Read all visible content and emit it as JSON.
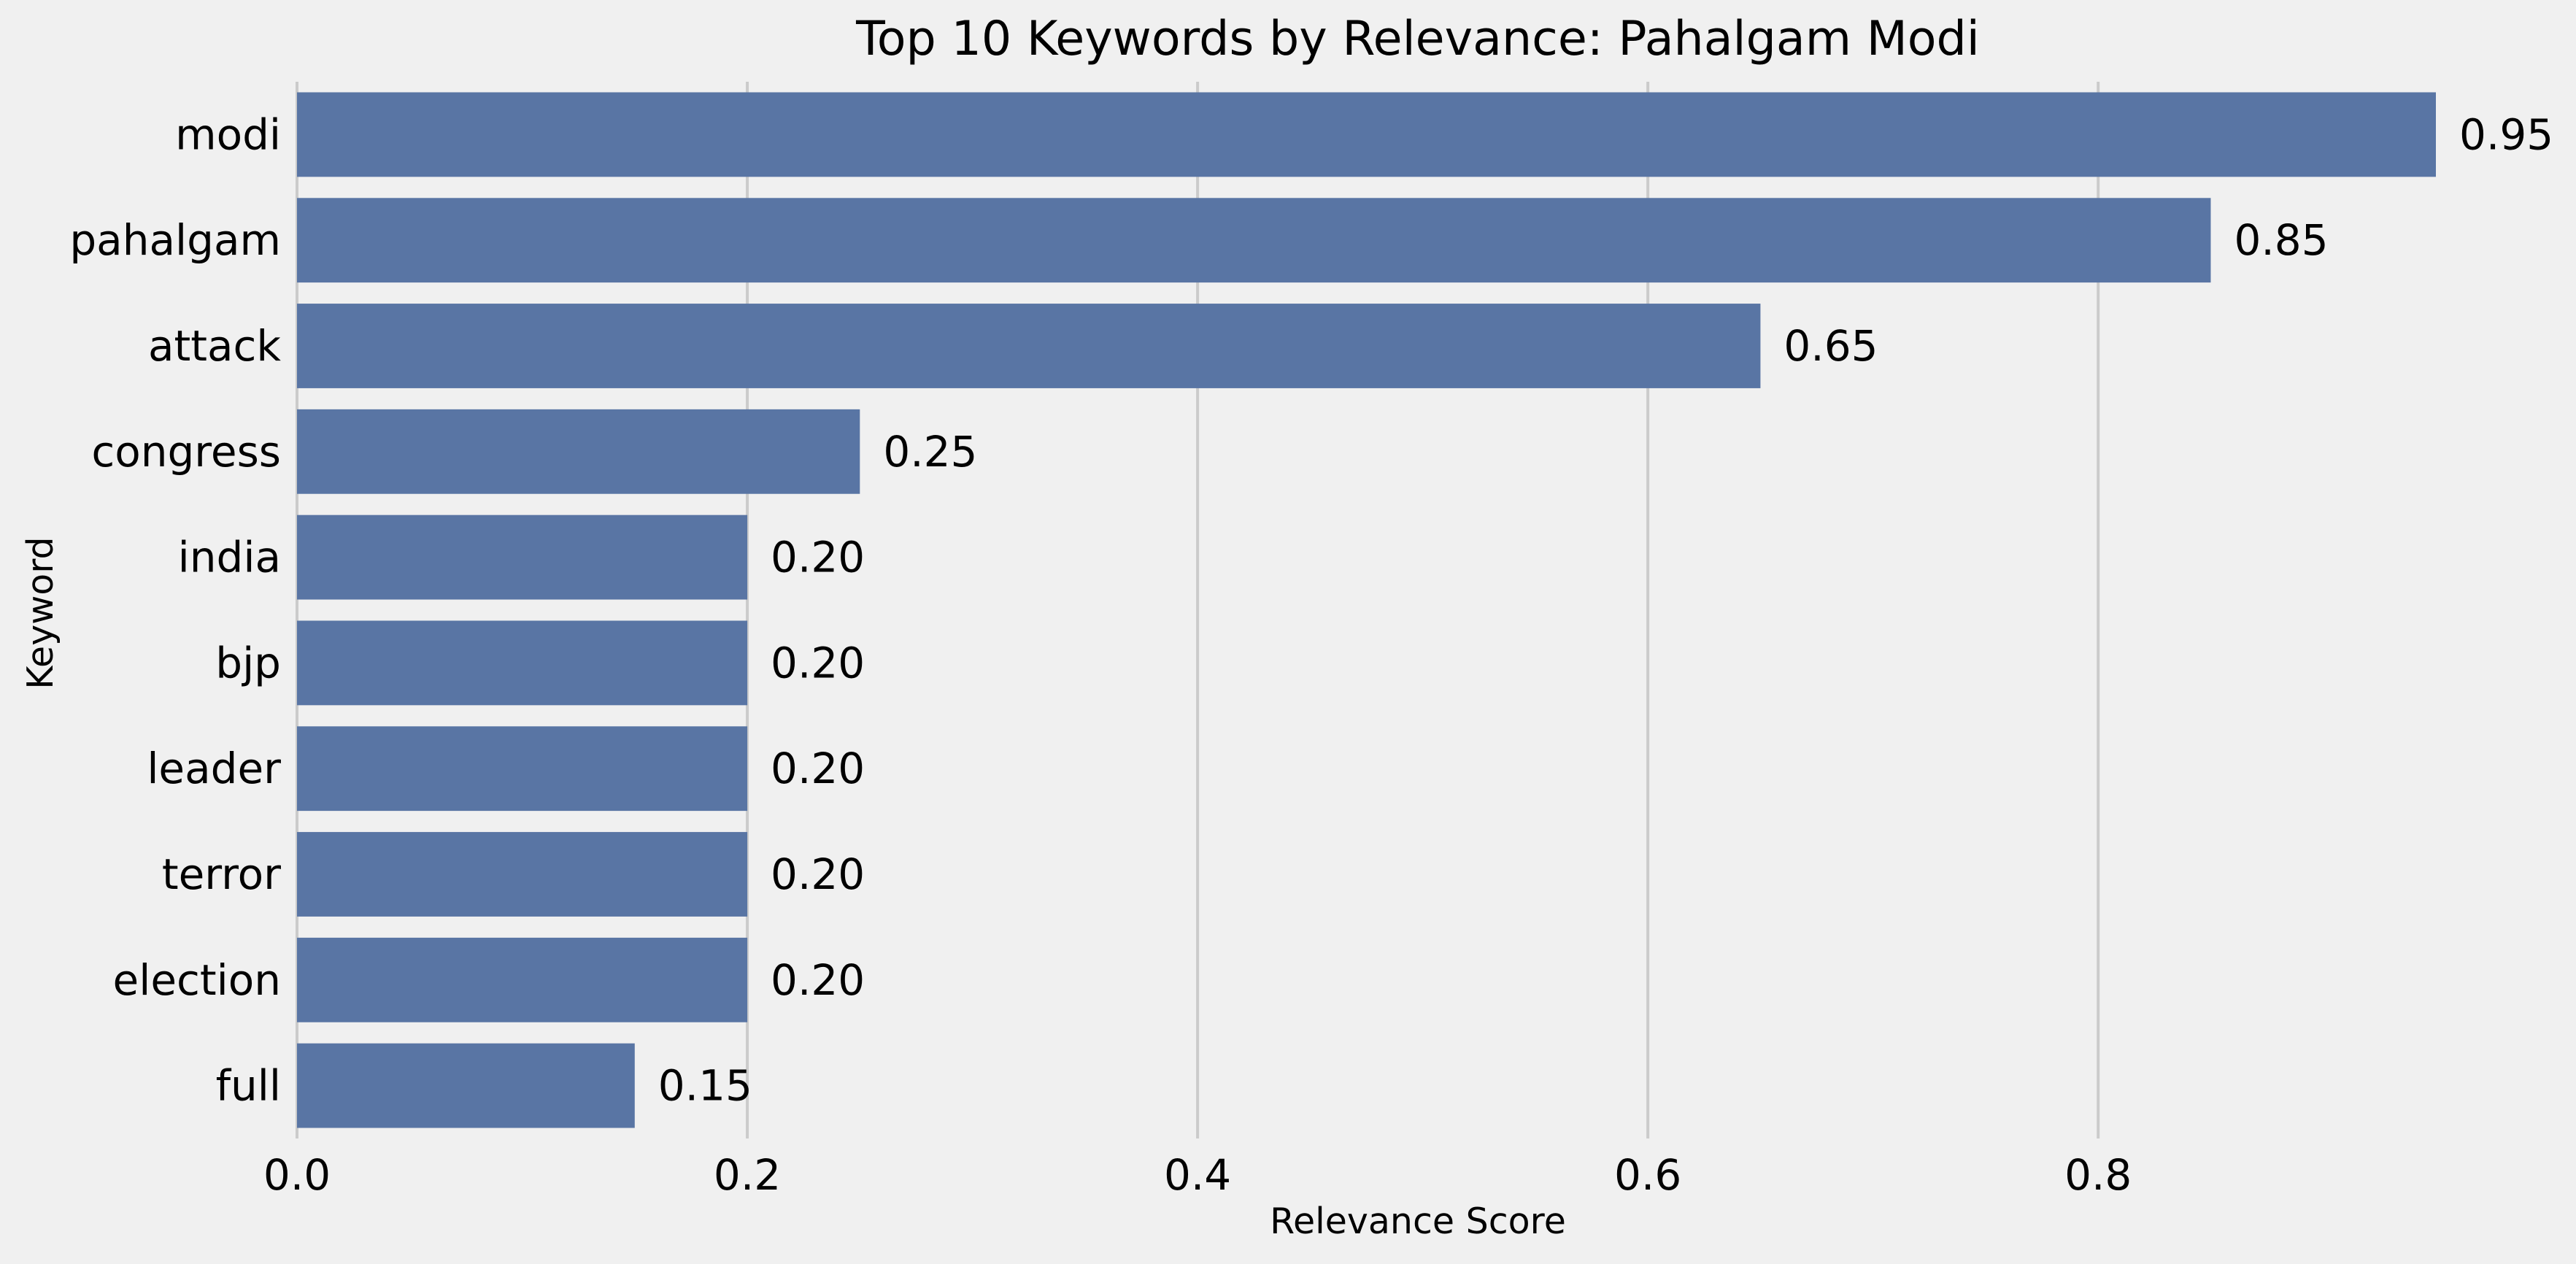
{
  "chart_data": {
    "type": "bar",
    "orientation": "horizontal",
    "title": "Top 10 Keywords by Relevance: Pahalgam Modi",
    "xlabel": "Relevance Score",
    "ylabel": "Keyword",
    "categories": [
      "modi",
      "pahalgam",
      "attack",
      "congress",
      "india",
      "bjp",
      "leader",
      "terror",
      "election",
      "full"
    ],
    "values": [
      0.95,
      0.85,
      0.65,
      0.25,
      0.2,
      0.2,
      0.2,
      0.2,
      0.2,
      0.15
    ],
    "value_labels": [
      "0.95",
      "0.85",
      "0.65",
      "0.25",
      "0.20",
      "0.20",
      "0.20",
      "0.20",
      "0.20",
      "0.15"
    ],
    "xticks": [
      "0.0",
      "0.2",
      "0.4",
      "0.6",
      "0.8"
    ],
    "xlim": [
      0,
      0.95
    ],
    "grid": "vertical",
    "legend": "none",
    "colors": {
      "bar": "#5975a4",
      "background": "#f0f0f0",
      "grid": "#cbcbcb"
    }
  }
}
